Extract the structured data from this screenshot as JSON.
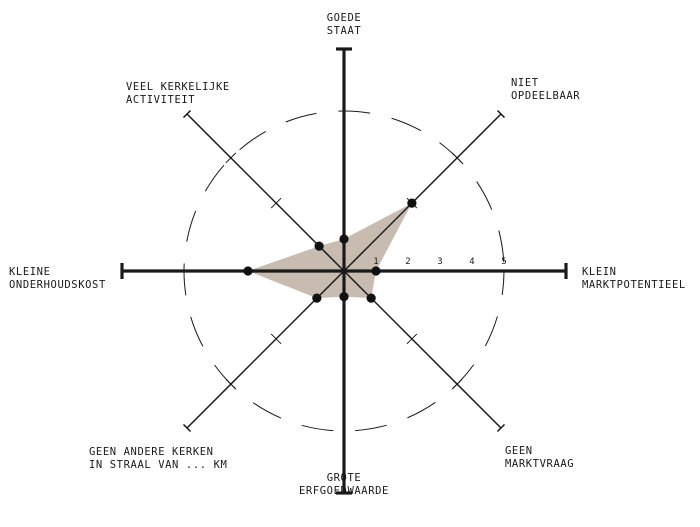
{
  "chart_data": {
    "type": "radar",
    "rmax": 5,
    "scale_ticks": [
      "1",
      "2",
      "3",
      "4",
      "5"
    ],
    "colors": {
      "fill": "#c8bcb0",
      "axis": "#1a1a1a",
      "dots": "#111111"
    },
    "axes": [
      {
        "id": "goede-staat",
        "label": [
          "GOEDE",
          "STAAT"
        ],
        "value": 1,
        "emphasis": true
      },
      {
        "id": "niet-opdeelbaar",
        "label": [
          "NIET",
          "OPDEELBAAR"
        ],
        "value": 3,
        "emphasis": false
      },
      {
        "id": "klein-marktpotentieel",
        "label": [
          "KLEIN",
          "MARKTPOTENTIEEL"
        ],
        "value": 1,
        "emphasis": true
      },
      {
        "id": "geen-marktvraag",
        "label": [
          "GEEN",
          "MARKTVRAAG"
        ],
        "value": 1.2,
        "emphasis": false
      },
      {
        "id": "grote-erfgoedwaarde",
        "label": [
          "GROTE",
          "ERFGOEDWAARDE"
        ],
        "value": 0.8,
        "emphasis": true
      },
      {
        "id": "geen-andere-kerken",
        "label": [
          "GEEN ANDERE KERKEN",
          "IN STRAAL VAN ... KM"
        ],
        "value": 1.2,
        "emphasis": false
      },
      {
        "id": "kleine-onderhoudskost",
        "label": [
          "KLEINE",
          "ONDERHOUDSKOST"
        ],
        "value": 3,
        "emphasis": true
      },
      {
        "id": "veel-kerkelijke-activiteit",
        "label": [
          "VEEL KERKELIJKE",
          "ACTIVITEIT"
        ],
        "value": 1.1,
        "emphasis": false
      }
    ]
  }
}
